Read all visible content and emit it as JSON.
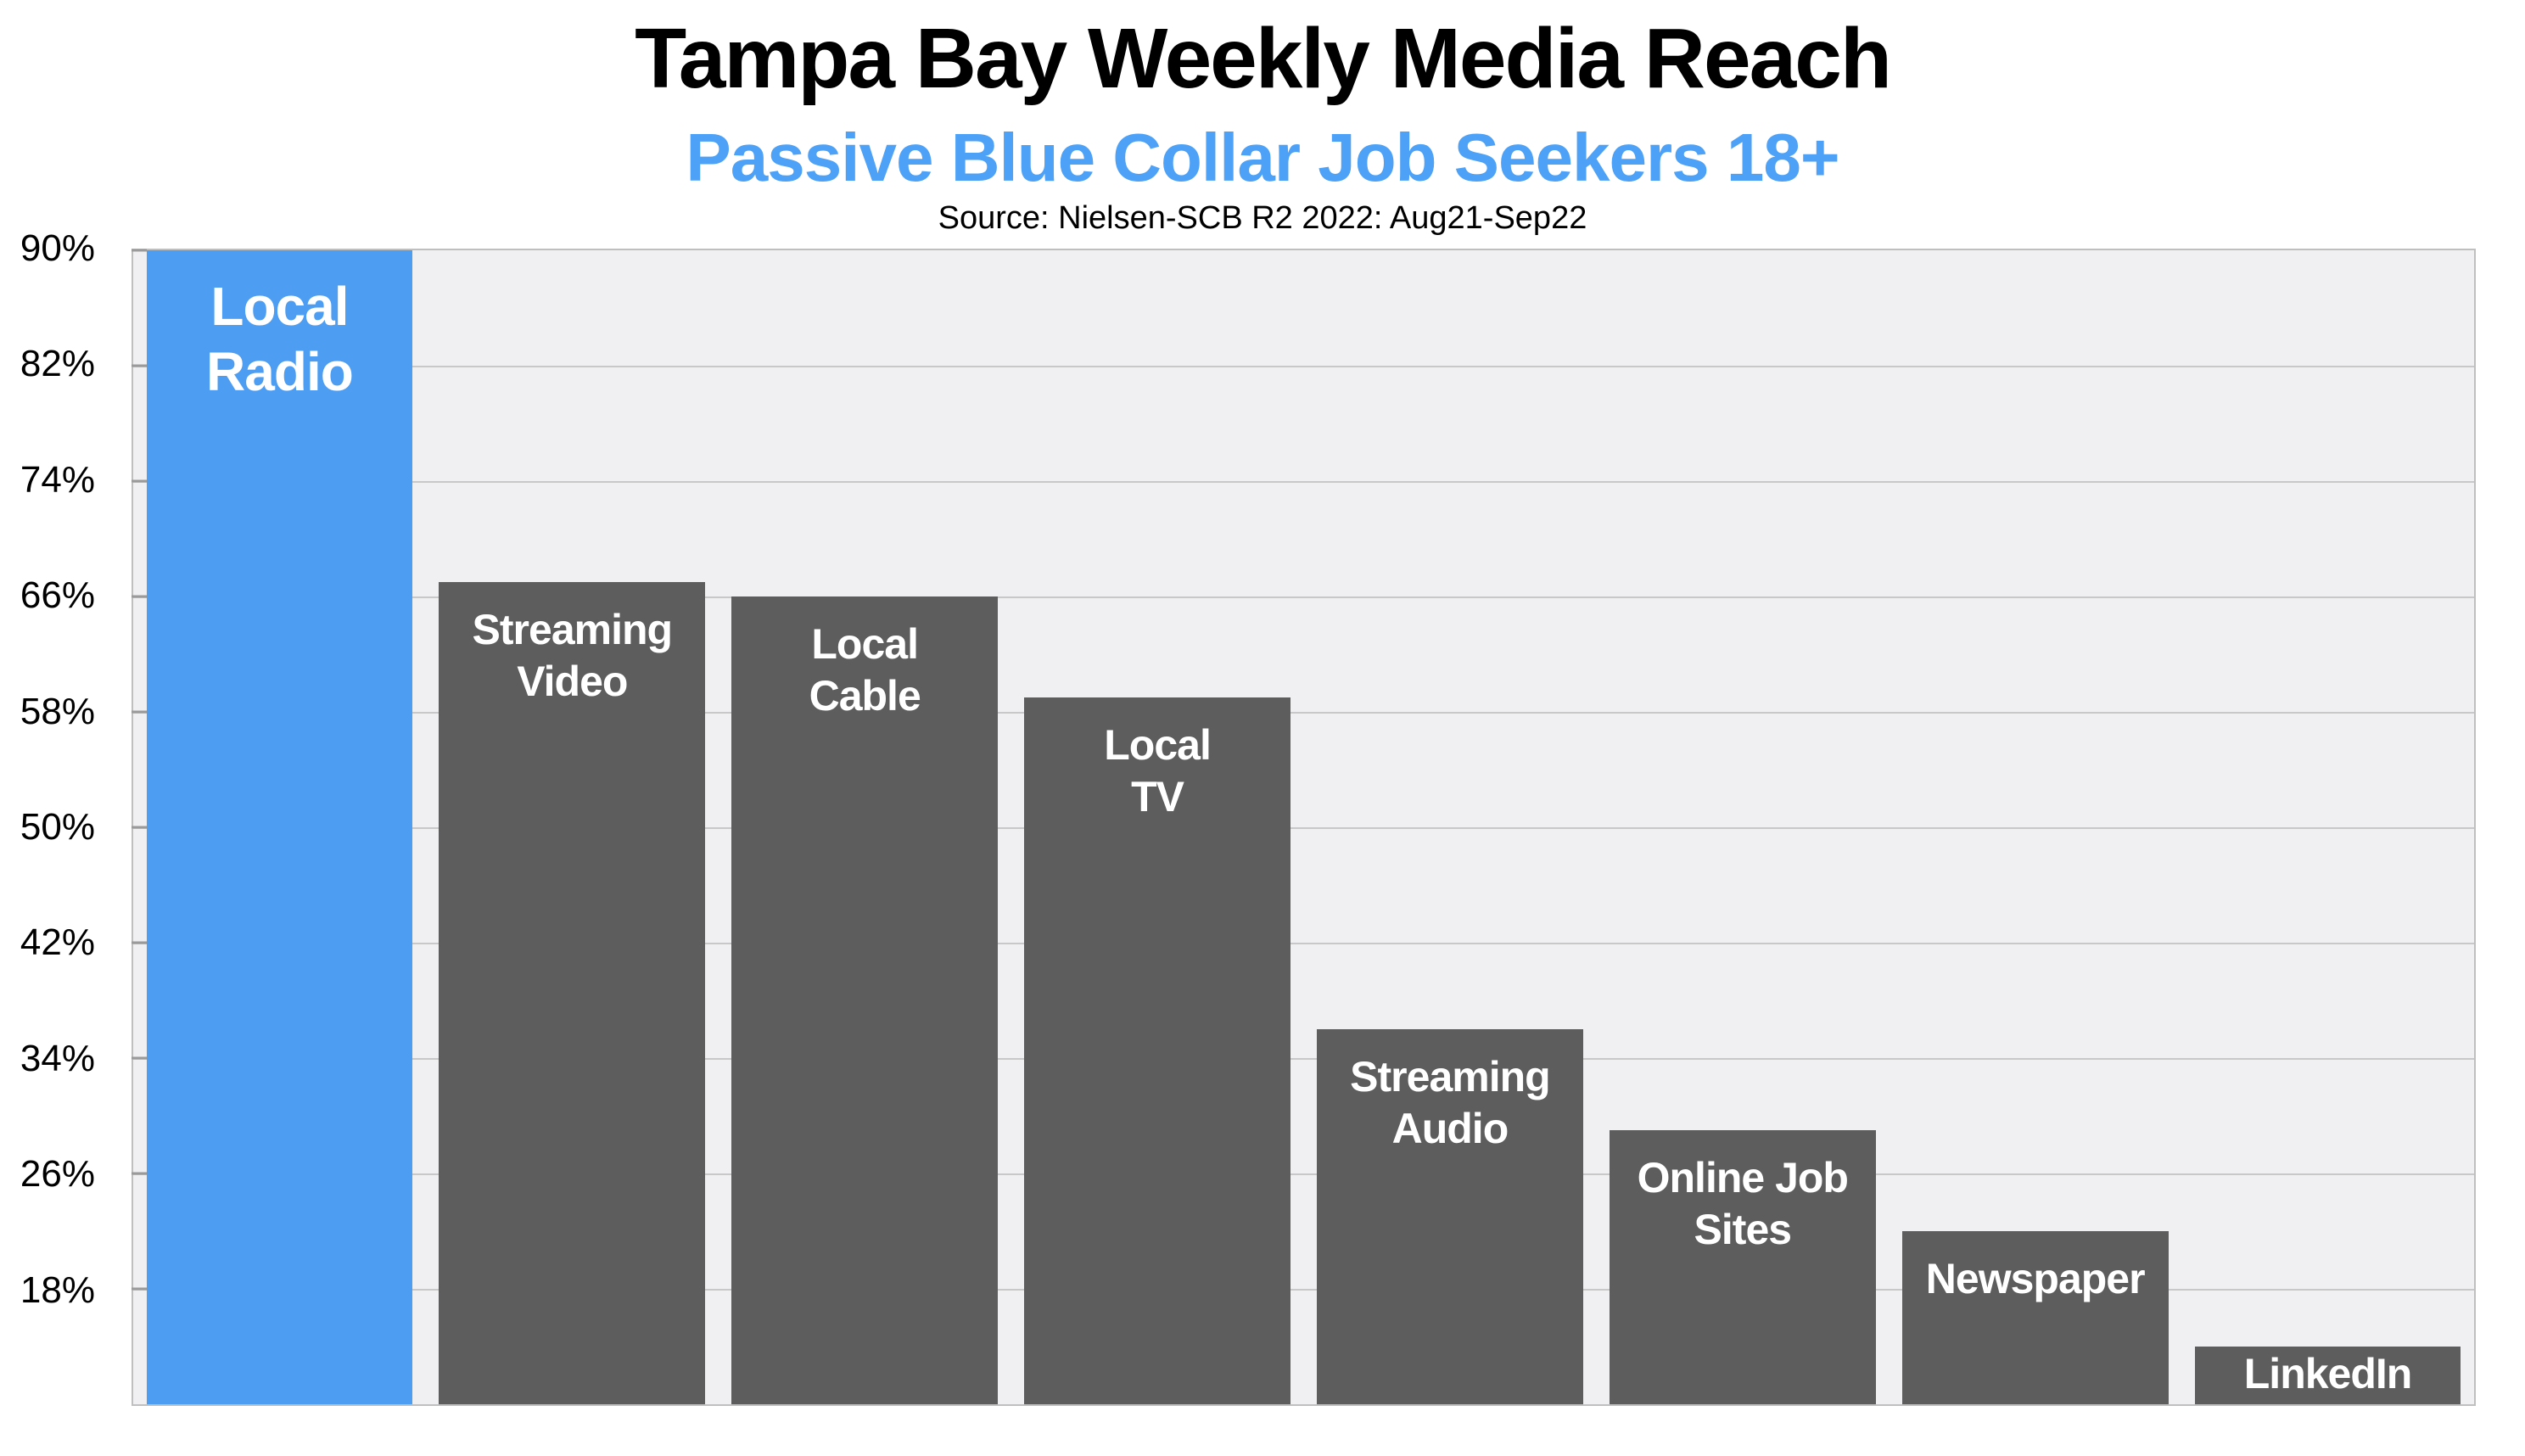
{
  "header": {
    "title": "Tampa Bay Weekly Media Reach",
    "subtitle": "Passive Blue Collar Job Seekers 18+",
    "source": "Source: Nielsen-SCB R2 2022: Aug21-Sep22"
  },
  "colors": {
    "subtitle_blue": "#4da1f6",
    "radio_bar_blue": "#4d9ef3",
    "media_bar_gray": "#5d5d5d",
    "plot_background": "#f0f0f2",
    "gridline_gray": "#c8c8c8"
  },
  "yaxis": {
    "min": 10,
    "max": 90,
    "tick_step": 8,
    "ticks": [
      "90%",
      "82%",
      "74%",
      "66%",
      "58%",
      "50%",
      "42%",
      "34%",
      "26%",
      "18%"
    ]
  },
  "bars": [
    {
      "label": "Local\nRadio",
      "value": 90,
      "color": "#4d9ef3"
    },
    {
      "label": "Streaming\nVideo",
      "value": 67,
      "color": "#5d5d5d"
    },
    {
      "label": "Local\nCable",
      "value": 66,
      "color": "#5d5d5d"
    },
    {
      "label": "Local\nTV",
      "value": 59,
      "color": "#5d5d5d"
    },
    {
      "label": "Streaming\nAudio",
      "value": 36,
      "color": "#5d5d5d"
    },
    {
      "label": "Online Job\nSites",
      "value": 29,
      "color": "#5d5d5d"
    },
    {
      "label": "Newspaper",
      "value": 22,
      "color": "#5d5d5d"
    },
    {
      "label": "LinkedIn",
      "value": 14,
      "color": "#5d5d5d"
    }
  ],
  "chart_data": {
    "type": "bar",
    "title": "Tampa Bay Weekly Media Reach",
    "subtitle": "Passive Blue Collar Job Seekers 18+",
    "source": "Source: Nielsen-SCB R2 2022: Aug21-Sep22",
    "categories": [
      "Local Radio",
      "Streaming Video",
      "Local Cable",
      "Local TV",
      "Streaming Audio",
      "Online Job Sites",
      "Newspaper",
      "LinkedIn"
    ],
    "values": [
      90,
      67,
      66,
      59,
      36,
      29,
      22,
      14
    ],
    "unit": "% weekly reach",
    "xlabel": "",
    "ylabel": "",
    "ylim": [
      10,
      90
    ],
    "ytick_labels": [
      "18%",
      "26%",
      "34%",
      "42%",
      "50%",
      "58%",
      "66%",
      "74%",
      "82%",
      "90%"
    ],
    "grid": true,
    "legend": false,
    "highlight": "Local Radio bar is blue; all other bars are dark gray; category labels are printed in white inside the bars"
  }
}
